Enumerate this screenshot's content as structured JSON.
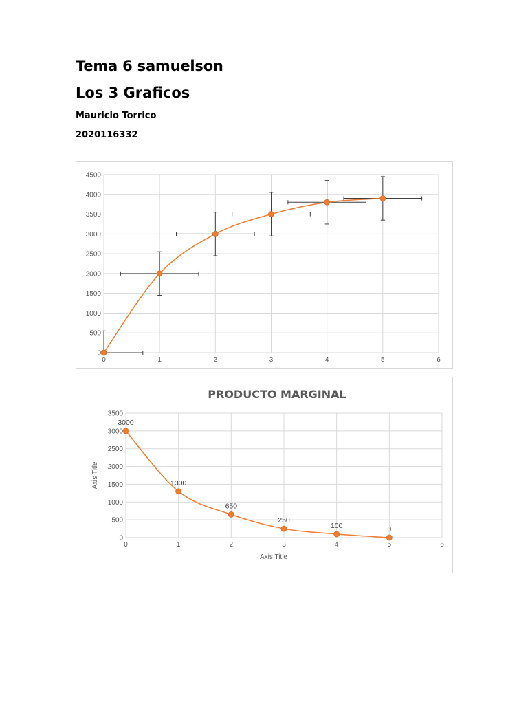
{
  "document": {
    "title": "Tema 6 samuelson",
    "subtitle": "Los 3 Graficos",
    "author": "Mauricio Torrico",
    "id_number": "2020116332"
  },
  "colors": {
    "series": "#ed7d31",
    "grid": "#d9d9d9",
    "error_bar": "#404040",
    "tick_text": "#595959"
  },
  "chart_data": [
    {
      "type": "scatter",
      "smooth_line": true,
      "title": "",
      "xlabel": "",
      "ylabel": "",
      "xlim": [
        0,
        6
      ],
      "ylim": [
        0,
        4500
      ],
      "x_ticks": [
        "0",
        "1",
        "2",
        "3",
        "4",
        "5",
        "6"
      ],
      "y_ticks": [
        "0",
        "500",
        "1000",
        "1500",
        "2000",
        "2500",
        "3000",
        "3500",
        "4000",
        "4500"
      ],
      "grid": true,
      "legend": "none",
      "series": [
        {
          "x": [
            0,
            1,
            2,
            3,
            4,
            5
          ],
          "y": [
            0,
            2000,
            3000,
            3500,
            3800,
            3900
          ],
          "x_error": [
            0.7,
            0.7,
            0.7,
            0.7,
            0.7,
            0.7
          ],
          "y_error": [
            550,
            550,
            550,
            550,
            550,
            550
          ]
        }
      ]
    },
    {
      "type": "scatter",
      "smooth_line": true,
      "title": "PRODUCTO MARGINAL",
      "xlabel": "Axis Title",
      "ylabel": "Axis Title",
      "xlim": [
        0,
        6
      ],
      "ylim": [
        0,
        3500
      ],
      "x_ticks": [
        "0",
        "1",
        "2",
        "3",
        "4",
        "5",
        "6"
      ],
      "y_ticks": [
        "0",
        "500",
        "1000",
        "1500",
        "2000",
        "2500",
        "3000",
        "3500"
      ],
      "grid": true,
      "legend": "none",
      "series": [
        {
          "x": [
            0,
            1,
            2,
            3,
            4,
            5
          ],
          "y": [
            3000,
            1300,
            650,
            250,
            100,
            0
          ],
          "labels": [
            "3000",
            "1300",
            "650",
            "250",
            "100",
            "0"
          ]
        }
      ]
    }
  ]
}
